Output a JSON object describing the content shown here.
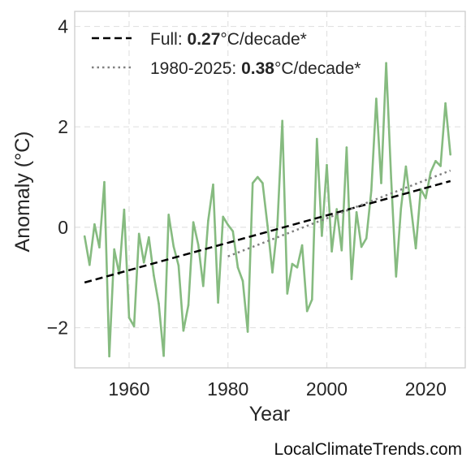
{
  "chart_data": {
    "type": "line",
    "xlabel": "Year",
    "ylabel": "Anomaly (°C)",
    "xlim": [
      1949,
      2028
    ],
    "ylim": [
      -2.8,
      4.3
    ],
    "x_ticks": [
      1960,
      1980,
      2000,
      2020
    ],
    "y_ticks": [
      4,
      2,
      0,
      -2
    ],
    "x_tick_labels": [
      "1960",
      "1980",
      "2000",
      "2020"
    ],
    "y_tick_labels": [
      "4",
      "2",
      "0",
      "−2"
    ],
    "grid": true,
    "legend_position": "top-left",
    "series": [
      {
        "color": "#86bb80",
        "x": [
          1951,
          1952,
          1953,
          1954,
          1955,
          1956,
          1957,
          1958,
          1959,
          1960,
          1961,
          1962,
          1963,
          1964,
          1965,
          1966,
          1967,
          1968,
          1969,
          1970,
          1971,
          1972,
          1973,
          1974,
          1975,
          1976,
          1977,
          1978,
          1979,
          1980,
          1981,
          1982,
          1983,
          1984,
          1985,
          1986,
          1987,
          1988,
          1989,
          1990,
          1991,
          1992,
          1993,
          1994,
          1995,
          1996,
          1997,
          1998,
          1999,
          2000,
          2001,
          2002,
          2003,
          2004,
          2005,
          2006,
          2007,
          2008,
          2009,
          2010,
          2011,
          2012,
          2013,
          2014,
          2015,
          2016,
          2017,
          2018,
          2019,
          2020,
          2021,
          2022,
          2023,
          2024,
          2025
        ],
        "y": [
          -0.18,
          -0.75,
          0.06,
          -0.4,
          0.9,
          -2.57,
          -0.44,
          -0.93,
          0.35,
          -1.8,
          -1.97,
          -0.13,
          -0.7,
          -0.2,
          -0.96,
          -1.52,
          -2.56,
          0.25,
          -0.38,
          -0.76,
          -2.06,
          -1.55,
          0.1,
          -0.35,
          -1.17,
          0.13,
          0.85,
          -1.5,
          0.21,
          0.05,
          -0.08,
          -0.8,
          -1.07,
          -2.08,
          0.88,
          1.0,
          0.88,
          0.03,
          -0.9,
          0.03,
          2.12,
          -1.32,
          -0.73,
          -0.8,
          -0.36,
          -1.67,
          -1.44,
          1.76,
          -0.17,
          1.24,
          -0.48,
          0.36,
          -0.46,
          1.59,
          -1.03,
          0.3,
          -0.39,
          -0.22,
          0.73,
          2.56,
          0.88,
          3.27,
          0.98,
          -0.98,
          0.37,
          1.21,
          0.42,
          -0.42,
          0.76,
          0.58,
          1.1,
          1.32,
          1.22,
          2.47,
          1.45
        ]
      }
    ],
    "trend_lines": [
      {
        "name_prefix": "Full: ",
        "name_value": "0.27",
        "name_suffix": "°C/decade*",
        "style": "dashed",
        "color": "#000000",
        "x": [
          1951,
          2025
        ],
        "y": [
          -1.1,
          0.92
        ]
      },
      {
        "name_prefix": "1980-2025: ",
        "name_value": "0.38",
        "name_suffix": "°C/decade*",
        "style": "dotted",
        "color": "#808080",
        "x": [
          1980,
          2025
        ],
        "y": [
          -0.58,
          1.13
        ]
      }
    ]
  },
  "watermark": "LocalClimateTrends.com"
}
